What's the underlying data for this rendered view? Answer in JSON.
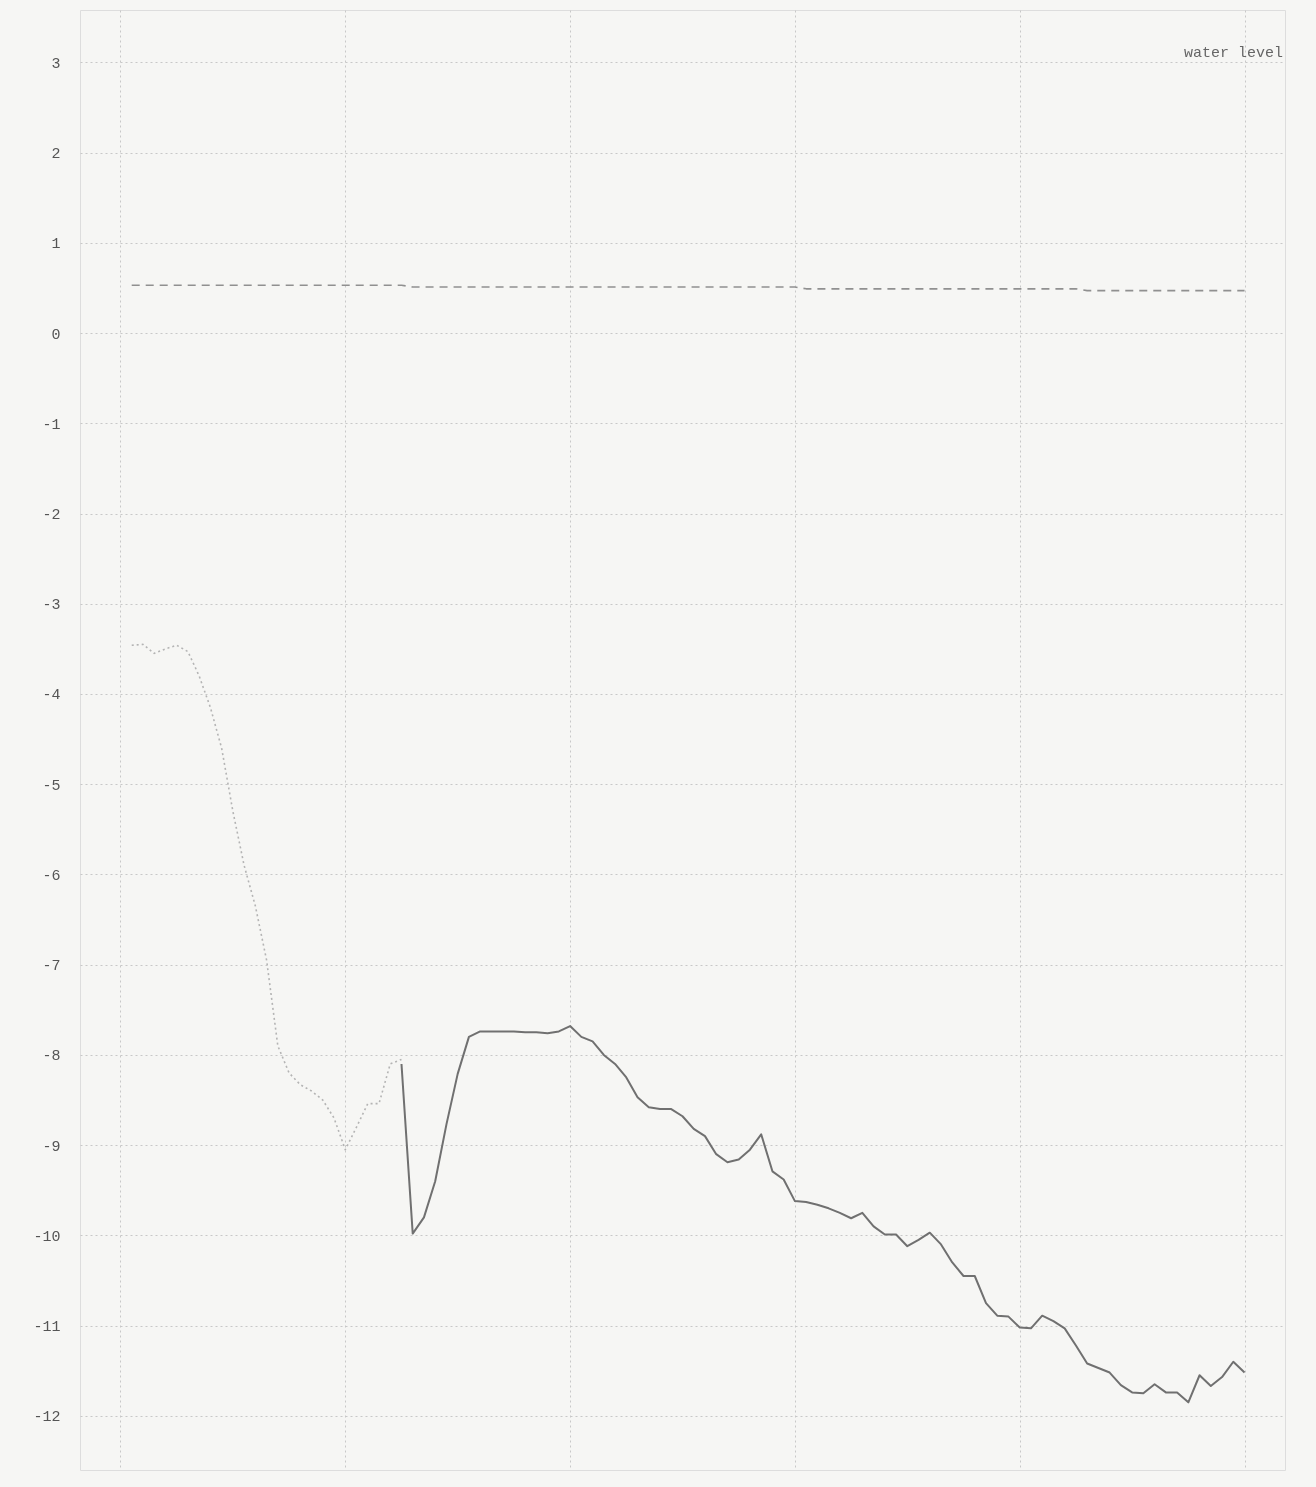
{
  "chart_data": {
    "type": "line",
    "annotations": [
      "water level"
    ],
    "categories": [
      null,
      null,
      null,
      null,
      null,
      null,
      null,
      null,
      null,
      null,
      null,
      null,
      null,
      null,
      null,
      null,
      null,
      null,
      null,
      null,
      null,
      null,
      null,
      null,
      null,
      null,
      null,
      null,
      null,
      null,
      null,
      null,
      null,
      null,
      null,
      null,
      null,
      null,
      null,
      null,
      null,
      null,
      null,
      null,
      null,
      null,
      null,
      null,
      null,
      null,
      null,
      null,
      null,
      null,
      null,
      null,
      null,
      null,
      null,
      null,
      null,
      null,
      null,
      null,
      null,
      null,
      null,
      null,
      null,
      null,
      null,
      null,
      null,
      null,
      null,
      null,
      null,
      null,
      null,
      null,
      null,
      null,
      null,
      null,
      null,
      null,
      null,
      null,
      null,
      null,
      null,
      null,
      null,
      null,
      null,
      null,
      null,
      null,
      null,
      null,
      null
    ],
    "ylim": [
      -12.6,
      3.58
    ],
    "yticks": [
      -12,
      -11,
      -10,
      -9,
      -8,
      -7,
      -6,
      -5,
      -4,
      -3,
      -2,
      -1,
      0,
      1,
      2,
      3
    ],
    "grid": true,
    "tick_labels": "y",
    "series": [
      {
        "color": "#909090",
        "line_style": "dashed",
        "values": [
          null,
          0.53,
          0.53,
          0.53,
          0.53,
          0.53,
          0.53,
          0.53,
          0.53,
          0.53,
          0.53,
          0.53,
          0.53,
          0.53,
          0.53,
          0.53,
          0.53,
          0.53,
          0.53,
          0.53,
          0.53,
          0.53,
          0.53,
          0.53,
          0.53,
          0.53,
          0.51,
          0.51,
          0.51,
          0.51,
          0.51,
          0.51,
          0.51,
          0.51,
          0.51,
          0.51,
          0.51,
          0.51,
          0.51,
          0.51,
          0.51,
          0.51,
          0.51,
          0.51,
          0.51,
          0.51,
          0.51,
          0.51,
          0.51,
          0.51,
          0.51,
          0.51,
          0.51,
          0.51,
          0.51,
          0.51,
          0.51,
          0.51,
          0.51,
          0.51,
          0.51,
          0.49,
          0.49,
          0.49,
          0.49,
          0.49,
          0.49,
          0.49,
          0.49,
          0.49,
          0.49,
          0.49,
          0.49,
          0.49,
          0.49,
          0.49,
          0.49,
          0.49,
          0.49,
          0.49,
          0.49,
          0.49,
          0.49,
          0.49,
          0.49,
          0.49,
          0.47,
          0.47,
          0.47,
          0.47,
          0.47,
          0.47,
          0.47,
          0.47,
          0.47,
          0.47,
          0.47,
          0.47,
          0.47,
          0.47,
          0.47
        ]
      },
      {
        "color": "#b4b4b4",
        "line_style": "dotted",
        "values": [
          null,
          -3.46,
          -3.45,
          -3.55,
          -3.5,
          -3.46,
          -3.53,
          -3.8,
          -4.15,
          -4.6,
          -5.3,
          -5.9,
          -6.35,
          -6.95,
          -7.9,
          -8.2,
          -8.33,
          -8.4,
          -8.5,
          -8.7,
          -9.05,
          -8.8,
          -8.54,
          -8.54,
          -8.1,
          -8.05,
          null,
          null,
          null,
          null,
          null,
          null,
          null,
          null,
          null,
          null,
          null,
          null,
          null,
          null,
          null,
          null,
          null,
          null,
          null,
          null,
          null,
          null,
          null,
          null,
          null,
          null,
          null,
          null,
          null,
          null,
          null,
          null,
          null,
          null,
          null,
          null,
          null,
          null,
          null,
          null,
          null,
          null,
          null,
          null,
          null,
          null,
          null,
          null,
          null,
          null,
          null,
          null,
          null,
          null,
          null,
          null,
          null,
          null,
          null,
          null,
          null,
          null,
          null,
          null,
          null,
          null,
          null,
          null,
          null,
          null,
          null,
          null,
          null,
          null,
          null
        ]
      },
      {
        "color": "#707070",
        "line_style": "solid",
        "values": [
          null,
          null,
          null,
          null,
          null,
          null,
          null,
          null,
          null,
          null,
          null,
          null,
          null,
          null,
          null,
          null,
          null,
          null,
          null,
          null,
          null,
          null,
          null,
          null,
          null,
          -8.1,
          -9.98,
          -9.8,
          -9.4,
          -8.77,
          -8.21,
          -7.8,
          -7.74,
          -7.74,
          -7.74,
          -7.74,
          -7.75,
          -7.75,
          -7.76,
          -7.74,
          -7.68,
          -7.8,
          -7.85,
          -8.0,
          -8.1,
          -8.25,
          -8.47,
          -8.58,
          -8.6,
          -8.6,
          -8.68,
          -8.82,
          -8.9,
          -9.1,
          -9.19,
          -9.16,
          -9.05,
          -8.88,
          -9.29,
          -9.38,
          -9.62,
          -9.63,
          -9.66,
          -9.7,
          -9.75,
          -9.81,
          -9.75,
          -9.9,
          -9.99,
          -9.99,
          -10.12,
          -10.05,
          -9.97,
          -10.1,
          -10.3,
          -10.45,
          -10.45,
          -10.75,
          -10.89,
          -10.9,
          -11.02,
          -11.03,
          -10.89,
          -10.95,
          -11.03,
          -11.22,
          -11.42,
          -11.47,
          -11.52,
          -11.66,
          -11.74,
          -11.75,
          -11.65,
          -11.74,
          -11.74,
          -11.85,
          -11.55,
          -11.67,
          -11.57,
          -11.4,
          -11.52
        ]
      }
    ]
  }
}
